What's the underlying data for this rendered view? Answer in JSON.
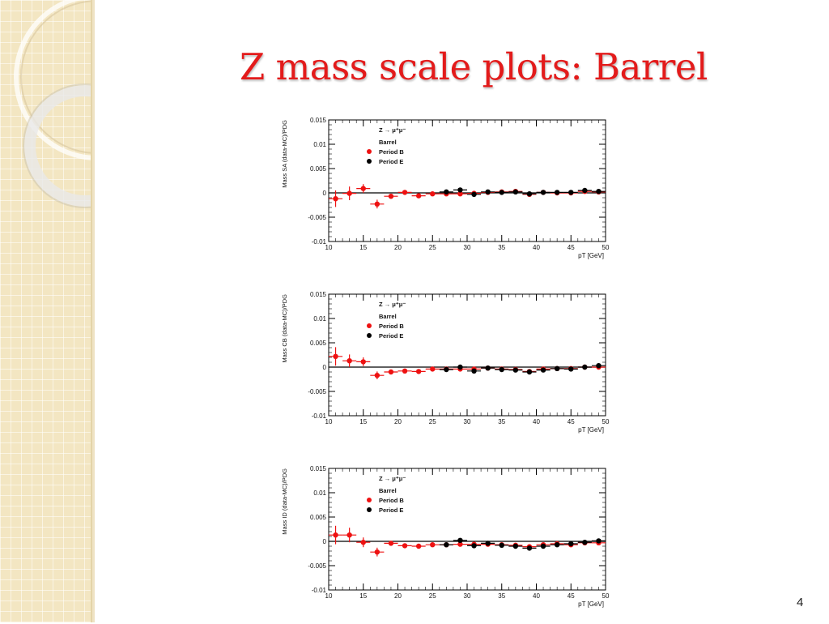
{
  "slide": {
    "title": "Z mass scale plots: Barrel",
    "page_number": "4",
    "title_color": "#e31b1b"
  },
  "colors": {
    "period_b": "#ee1111",
    "period_e": "#000000",
    "panel": "#f3e6c2"
  },
  "chart_data": [
    {
      "type": "scatter",
      "ylabel": "Mass SA (data-MC)/PDG",
      "xlabel": "pT [GeV]",
      "xlim": [
        10,
        50
      ],
      "ylim": [
        -0.01,
        0.015
      ],
      "x_ticks": [
        "10",
        "15",
        "20",
        "25",
        "30",
        "35",
        "40",
        "45",
        "50"
      ],
      "y_ticks": [
        "0.015",
        "0.01",
        "0.005",
        "0",
        "-0.005",
        "-0.01"
      ],
      "legend": {
        "title": "Z → μ⁺μ⁻",
        "subtitle": "Barrel",
        "placement": "top-left"
      },
      "reference_line": 0,
      "series": [
        {
          "name": "Period B",
          "color": "#ee1111",
          "x": [
            11,
            13,
            15,
            17,
            19,
            21,
            23,
            25,
            27,
            29,
            31,
            33,
            35,
            37,
            39,
            41,
            43,
            45,
            47,
            49
          ],
          "y": [
            -0.0012,
            -0.0001,
            0.0009,
            -0.0023,
            -0.0007,
            0.0001,
            -0.0006,
            -0.0002,
            -0.0002,
            -0.0002,
            -0.0001,
            0.0001,
            0.0002,
            0.0003,
            -0.0003,
            0.0001,
            0.0,
            0.0,
            0.0003,
            0.0002
          ],
          "yerr": [
            0.0017,
            0.0014,
            0.0009,
            0.0009,
            0.0005,
            0.0004,
            0.0004,
            0.0003,
            0.0003,
            0.0003,
            0.0003,
            0.0003,
            0.0003,
            0.0003,
            0.0003,
            0.0003,
            0.0003,
            0.0003,
            0.0003,
            0.0003
          ]
        },
        {
          "name": "Period E",
          "color": "#000000",
          "x": [
            27,
            29,
            31,
            33,
            35,
            37,
            39,
            41,
            43,
            45,
            47,
            49
          ],
          "y": [
            0.0002,
            0.0006,
            -0.0003,
            0.0002,
            0.0001,
            0.0002,
            -0.0002,
            0.0001,
            0.0001,
            0.0001,
            0.0005,
            0.0003
          ],
          "yerr": [
            0.0003,
            0.0003,
            0.0003,
            0.0003,
            0.0003,
            0.0003,
            0.0003,
            0.0003,
            0.0003,
            0.0003,
            0.0003,
            0.0003
          ]
        }
      ]
    },
    {
      "type": "scatter",
      "ylabel": "Mass CB (data-MC)/PDG",
      "xlabel": "pT [GeV]",
      "xlim": [
        10,
        50
      ],
      "ylim": [
        -0.01,
        0.015
      ],
      "x_ticks": [
        "10",
        "15",
        "20",
        "25",
        "30",
        "35",
        "40",
        "45",
        "50"
      ],
      "y_ticks": [
        "0.015",
        "0.01",
        "0.005",
        "0",
        "-0.005",
        "-0.01"
      ],
      "legend": {
        "title": "Z → μ⁺μ⁻",
        "subtitle": "Barrel",
        "placement": "top-left"
      },
      "reference_line": 0,
      "series": [
        {
          "name": "Period B",
          "color": "#ee1111",
          "x": [
            11,
            13,
            15,
            17,
            19,
            21,
            23,
            25,
            27,
            29,
            31,
            33,
            35,
            37,
            39,
            41,
            43,
            45,
            47,
            49
          ],
          "y": [
            0.0022,
            0.0013,
            0.0011,
            -0.0017,
            -0.001,
            -0.0008,
            -0.0009,
            -0.0004,
            -0.0004,
            -0.0004,
            -0.0004,
            -0.0002,
            -0.0004,
            -0.0005,
            -0.0009,
            -0.0004,
            -0.0003,
            -0.0003,
            0.0,
            0.0
          ],
          "yerr": [
            0.0019,
            0.0013,
            0.0009,
            0.0008,
            0.0005,
            0.0004,
            0.0004,
            0.0003,
            0.0003,
            0.0003,
            0.0003,
            0.0003,
            0.0003,
            0.0003,
            0.0003,
            0.0003,
            0.0003,
            0.0003,
            0.0003,
            0.0003
          ]
        },
        {
          "name": "Period E",
          "color": "#000000",
          "x": [
            27,
            29,
            31,
            33,
            35,
            37,
            39,
            41,
            43,
            45,
            47,
            49
          ],
          "y": [
            -0.0005,
            0.0,
            -0.0008,
            -0.0002,
            -0.0005,
            -0.0006,
            -0.001,
            -0.0006,
            -0.0003,
            -0.0004,
            0.0,
            0.0003
          ],
          "yerr": [
            0.0003,
            0.0003,
            0.0003,
            0.0003,
            0.0003,
            0.0003,
            0.0003,
            0.0003,
            0.0003,
            0.0003,
            0.0003,
            0.0003
          ]
        }
      ]
    },
    {
      "type": "scatter",
      "ylabel": "Mass ID (data-MC)/PDG",
      "xlabel": "pT [GeV]",
      "xlim": [
        10,
        50
      ],
      "ylim": [
        -0.01,
        0.015
      ],
      "x_ticks": [
        "10",
        "15",
        "20",
        "25",
        "30",
        "35",
        "40",
        "45",
        "50"
      ],
      "y_ticks": [
        "0.015",
        "0.01",
        "0.005",
        "0",
        "-0.005",
        "-0.01"
      ],
      "legend": {
        "title": "Z → μ⁺μ⁻",
        "subtitle": "Barrel",
        "placement": "top-left"
      },
      "reference_line": 0,
      "series": [
        {
          "name": "Period B",
          "color": "#ee1111",
          "x": [
            11,
            13,
            15,
            17,
            19,
            21,
            23,
            25,
            27,
            29,
            31,
            33,
            35,
            37,
            39,
            41,
            43,
            45,
            47,
            49
          ],
          "y": [
            0.0013,
            0.0013,
            -0.0002,
            -0.0022,
            -0.0004,
            -0.0009,
            -0.001,
            -0.0007,
            -0.0007,
            -0.0006,
            -0.0006,
            -0.0006,
            -0.0007,
            -0.0008,
            -0.0011,
            -0.0007,
            -0.0005,
            -0.0007,
            -0.0003,
            -0.0003
          ],
          "yerr": [
            0.0019,
            0.0015,
            0.001,
            0.0009,
            0.0005,
            0.0004,
            0.0004,
            0.0003,
            0.0003,
            0.0003,
            0.0003,
            0.0003,
            0.0003,
            0.0003,
            0.0003,
            0.0003,
            0.0003,
            0.0003,
            0.0003,
            0.0003
          ]
        },
        {
          "name": "Period E",
          "color": "#000000",
          "x": [
            27,
            29,
            31,
            33,
            35,
            37,
            39,
            41,
            43,
            45,
            47,
            49
          ],
          "y": [
            -0.0007,
            0.0002,
            -0.0009,
            -0.0004,
            -0.0008,
            -0.001,
            -0.0014,
            -0.001,
            -0.0007,
            -0.0005,
            -0.0002,
            0.0001
          ],
          "yerr": [
            0.0003,
            0.0003,
            0.0003,
            0.0003,
            0.0003,
            0.0003,
            0.0003,
            0.0003,
            0.0003,
            0.0003,
            0.0003,
            0.0003
          ]
        }
      ]
    }
  ]
}
